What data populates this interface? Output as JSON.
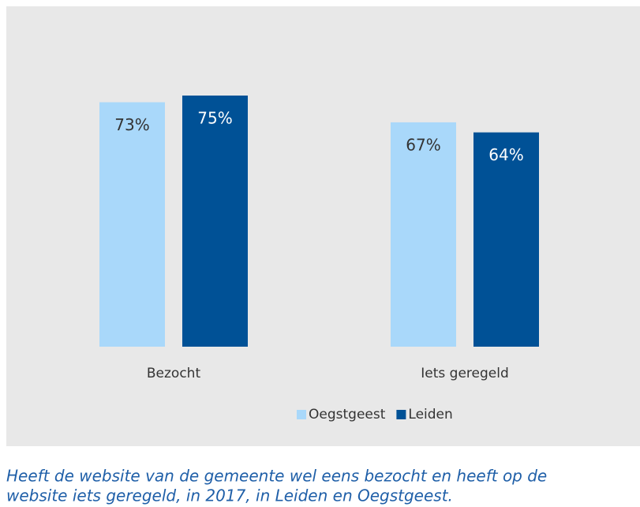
{
  "chart_data": {
    "type": "bar",
    "categories": [
      "Bezocht",
      "Iets geregeld"
    ],
    "series": [
      {
        "name": "Oegstgeest",
        "color": "#a9d8fa",
        "values": [
          73,
          67
        ],
        "value_labels": [
          "73%",
          "67%"
        ]
      },
      {
        "name": "Leiden",
        "color": "#005196",
        "values": [
          75,
          64
        ],
        "value_labels": [
          "75%",
          "64%"
        ]
      }
    ],
    "ylim": [
      0,
      100
    ],
    "legend": "bottom",
    "caption": [
      "Heeft de website van de gemeente wel eens bezocht en heeft op de",
      "website iets geregeld, in 2017, in Leiden en Oegstgeest."
    ]
  }
}
